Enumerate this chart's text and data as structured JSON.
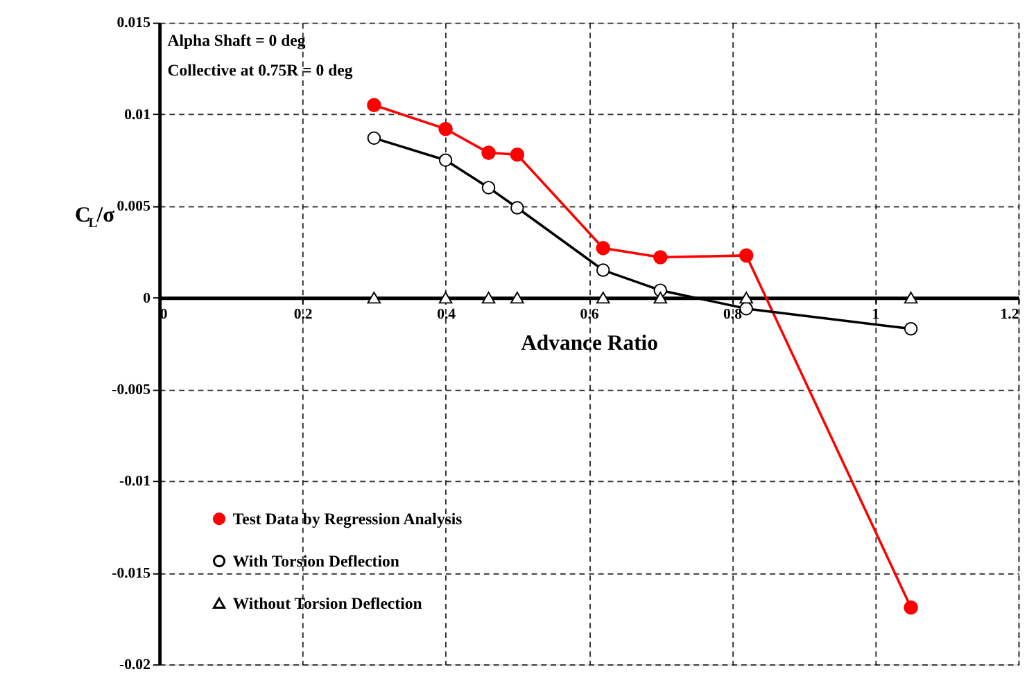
{
  "chart_data": {
    "type": "line",
    "xlabel": "Advance Ratio",
    "ylabel": "C$_{L}$/σ",
    "annotations": [
      "Alpha Shaft = 0 deg",
      "Collective at 0.75R = 0 deg"
    ],
    "series": [
      {
        "name": "Test Data by Regression Analysis",
        "marker": "circle",
        "color": "#ff0000",
        "x": [
          0.3,
          0.4,
          0.46,
          0.5,
          0.62,
          0.7,
          0.82,
          1.05
        ],
        "values": [
          0.0105,
          0.0092,
          0.0079,
          0.0078,
          0.0027,
          0.0022,
          0.0023,
          -0.0169
        ]
      },
      {
        "name": "With Torsion Deflection",
        "marker": "circle",
        "color": "#000000",
        "x": [
          0.3,
          0.4,
          0.46,
          0.5,
          0.62,
          0.7,
          0.82,
          1.05
        ],
        "values": [
          0.0087,
          0.0075,
          0.006,
          0.0049,
          0.0015,
          0.0004,
          -0.0006,
          -0.0017
        ]
      },
      {
        "name": "Without Torsion Deflection",
        "type": "scatter",
        "marker": "triangle",
        "color": "#000000",
        "x": [
          0.3,
          0.4,
          0.46,
          0.5,
          0.62,
          0.7,
          0.82,
          1.05
        ],
        "values": [
          0,
          0,
          0,
          0,
          0,
          0,
          0,
          0
        ]
      }
    ],
    "xlim": [
      0,
      1.2
    ],
    "xticks": [
      0,
      0.2,
      0.4,
      0.6,
      0.8,
      1,
      1.2
    ],
    "ylim": [
      -0.02,
      0.015
    ],
    "yticks": [
      -0.02,
      -0.015,
      -0.01,
      -0.005,
      0,
      0.005,
      0.01,
      0.015
    ],
    "grid": true,
    "legend": "bottom left"
  }
}
